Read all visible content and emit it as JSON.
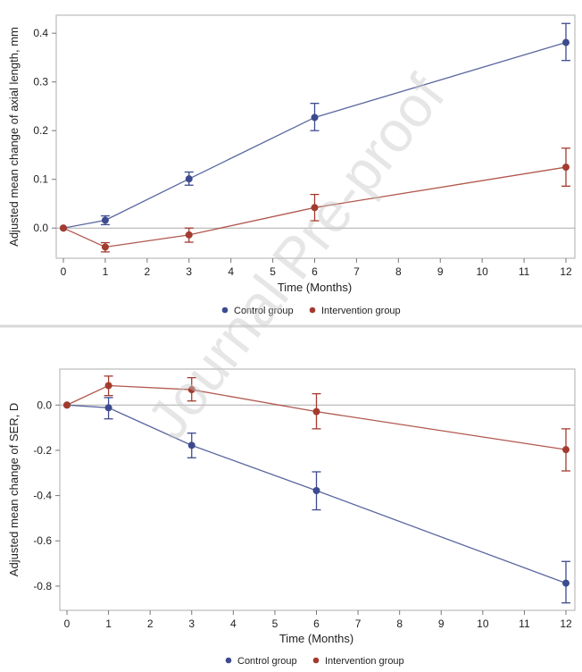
{
  "watermark": "Journal Pre-proof",
  "colors": {
    "control": "#3d4b8e",
    "intervention": "#a33b2f"
  },
  "chart_data": [
    {
      "type": "line",
      "title": "",
      "xlabel": "Time (Months)",
      "ylabel": "Adjusted mean change of axial length, mm",
      "xlim": [
        0,
        12
      ],
      "ylim": [
        -0.062,
        0.437
      ],
      "xticks": [
        "0",
        "1",
        "2",
        "3",
        "4",
        "5",
        "6",
        "7",
        "8",
        "9",
        "10",
        "11",
        "12"
      ],
      "yticks": [
        "0.0",
        "0.1",
        "0.2",
        "0.3",
        "0.4"
      ],
      "ytick_values": [
        0,
        0.1,
        0.2,
        0.3,
        0.4
      ],
      "reference_line": 0,
      "legend": "bottom",
      "series": [
        {
          "name": "Control group",
          "x": [
            0,
            1,
            3,
            6,
            12
          ],
          "values": [
            0,
            0.016,
            0.101,
            0.227,
            0.381
          ],
          "upper": [
            0,
            0.025,
            0.115,
            0.256,
            0.42
          ],
          "lower": [
            0,
            0.007,
            0.088,
            0.2,
            0.344
          ]
        },
        {
          "name": "Intervention group",
          "x": [
            0,
            1,
            3,
            6,
            12
          ],
          "values": [
            0,
            -0.039,
            -0.014,
            0.042,
            0.125
          ],
          "upper": [
            0,
            -0.03,
            0.0,
            0.069,
            0.164
          ],
          "lower": [
            0,
            -0.049,
            -0.029,
            0.015,
            0.086
          ]
        }
      ]
    },
    {
      "type": "line",
      "title": "",
      "xlabel": "Time (Months)",
      "ylabel": "Adjusted mean change of SER, D",
      "xlim": [
        0,
        12
      ],
      "ylim": [
        -0.907,
        0.159
      ],
      "xticks": [
        "0",
        "1",
        "2",
        "3",
        "4",
        "5",
        "6",
        "7",
        "8",
        "9",
        "10",
        "11",
        "12"
      ],
      "yticks": [
        "0.0",
        "-0.2",
        "-0.4",
        "-0.6",
        "-0.8"
      ],
      "ytick_values": [
        0,
        -0.2,
        -0.4,
        -0.6,
        -0.8
      ],
      "reference_line": 0,
      "legend": "bottom",
      "series": [
        {
          "name": "Control group",
          "x": [
            0,
            1,
            3,
            6,
            12
          ],
          "values": [
            0,
            -0.012,
            -0.178,
            -0.378,
            -0.787
          ],
          "upper": [
            0,
            0.033,
            -0.124,
            -0.295,
            -0.691
          ],
          "lower": [
            0,
            -0.061,
            -0.233,
            -0.463,
            -0.874
          ]
        },
        {
          "name": "Intervention group",
          "x": [
            0,
            1,
            3,
            6,
            12
          ],
          "values": [
            0,
            0.086,
            0.068,
            -0.029,
            -0.197
          ],
          "upper": [
            0,
            0.128,
            0.121,
            0.05,
            -0.105
          ],
          "lower": [
            0,
            0.042,
            0.018,
            -0.105,
            -0.291
          ]
        }
      ]
    }
  ]
}
